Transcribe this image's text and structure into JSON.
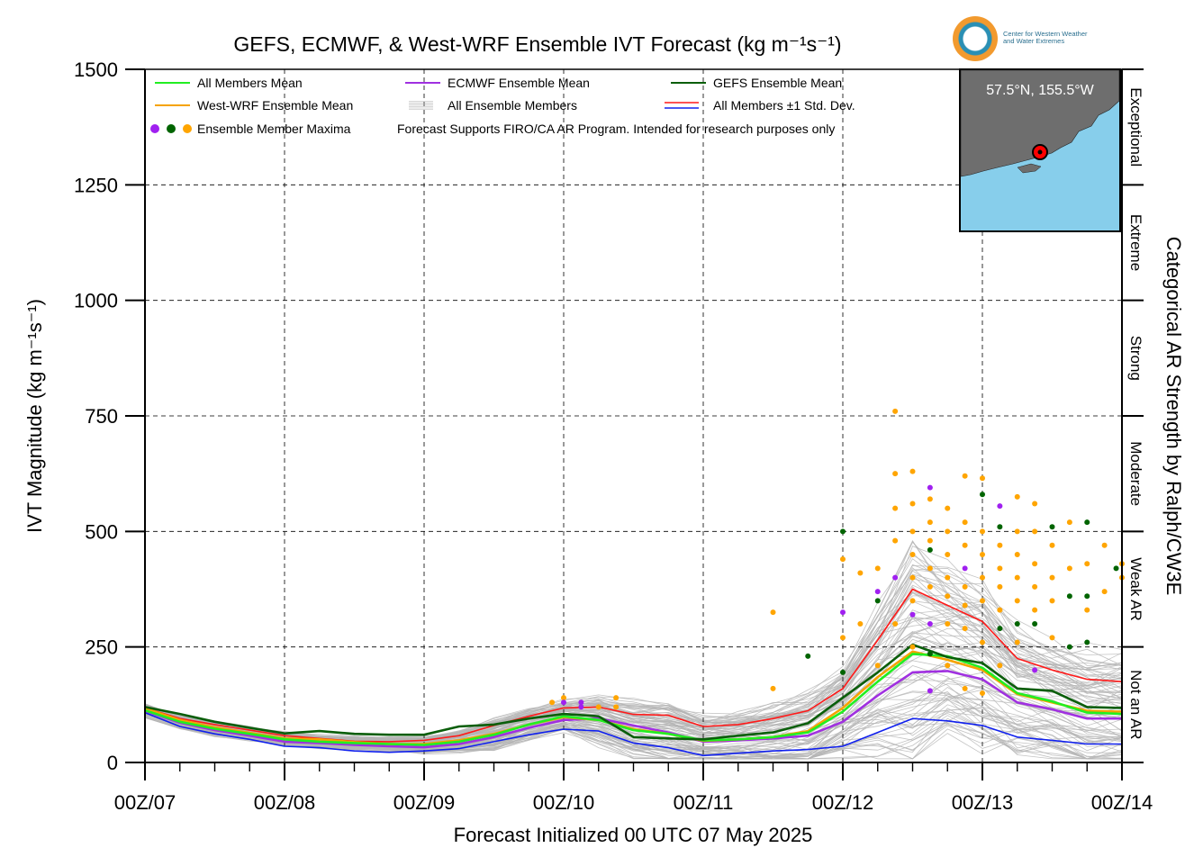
{
  "title": "GEFS, ECMWF, & West-WRF Ensemble IVT Forecast (kg m⁻¹s⁻¹)",
  "logo": {
    "line1": "Center for Western Weather",
    "line2": "and Water Extremes"
  },
  "inset_label": "57.5°N, 155.5°W",
  "footer_note": "Forecast Supports FIRO/CA AR Program. Intended for research purposes only",
  "colors": {
    "all_members_mean": "#22ee22",
    "west_wrf_mean": "#f5a300",
    "ecmwf_mean": "#a030e0",
    "all_ensemble_members": "#b4b4b4",
    "gefs_mean": "#0a5e0a",
    "std_plus": "#ff1a1a",
    "std_minus": "#1020ee",
    "maxima_ecmwf": "#a020f0",
    "maxima_gefs": "#006400",
    "maxima_westwrf": "#ffa500",
    "ocean": "#87ceeb",
    "land": "#6e6e6e"
  },
  "chart_data": {
    "type": "line",
    "title": "GEFS, ECMWF, & West-WRF Ensemble IVT Forecast (kg m⁻¹s⁻¹)",
    "xlabel": "Forecast Initialized 00 UTC 07 May 2025",
    "ylabel": "IVT Magnitude (kg m⁻¹s⁻¹)",
    "right_label": "Categorical AR Strength by Ralph/CW3E",
    "xlim": [
      0,
      168
    ],
    "ylim": [
      0,
      1500
    ],
    "x_unit": "forecast hour",
    "x_ticks": [
      0,
      24,
      48,
      72,
      96,
      120,
      144,
      168
    ],
    "x_tick_labels": [
      "00Z/07",
      "00Z/08",
      "00Z/09",
      "00Z/10",
      "00Z/11",
      "00Z/12",
      "00Z/13",
      "00Z/14"
    ],
    "y_ticks": [
      0,
      250,
      500,
      750,
      1000,
      1250,
      1500
    ],
    "y_tick_labels": [
      "0",
      "250",
      "500",
      "750",
      "1000",
      "1250",
      "1500"
    ],
    "categories": [
      {
        "label": "Not an AR",
        "lo": 0,
        "hi": 250
      },
      {
        "label": "Weak AR",
        "lo": 250,
        "hi": 500
      },
      {
        "label": "Moderate",
        "lo": 500,
        "hi": 750
      },
      {
        "label": "Strong",
        "lo": 750,
        "hi": 1000
      },
      {
        "label": "Extreme",
        "lo": 1000,
        "hi": 1250
      },
      {
        "label": "Exceptional",
        "lo": 1250,
        "hi": 1500
      }
    ],
    "grid": true,
    "legend": [
      {
        "label": "All Members Mean",
        "key": "all_members_mean",
        "kind": "line"
      },
      {
        "label": "ECMWF Ensemble Mean",
        "key": "ecmwf_mean",
        "kind": "line"
      },
      {
        "label": "GEFS Ensemble Mean",
        "key": "gefs_mean",
        "kind": "line"
      },
      {
        "label": "West-WRF Ensemble Mean",
        "key": "west_wrf_mean",
        "kind": "line"
      },
      {
        "label": "All Ensemble Members",
        "key": "all_ensemble_members",
        "kind": "multi"
      },
      {
        "label": "All Members ±1 Std. Dev.",
        "key": "std",
        "kind": "pair"
      },
      {
        "label": "Ensemble Member Maxima",
        "key": "maxima",
        "kind": "dots"
      }
    ],
    "legend_placement": "top-left",
    "series": [
      {
        "name": "All Members Mean",
        "key": "all_members_mean",
        "x": [
          0,
          6,
          12,
          18,
          24,
          30,
          36,
          42,
          48,
          54,
          60,
          66,
          72,
          78,
          84,
          90,
          96,
          102,
          108,
          114,
          120,
          126,
          132,
          138,
          144,
          150,
          156,
          162,
          168
        ],
        "y": [
          113,
          88,
          73,
          62,
          50,
          45,
          42,
          40,
          38,
          45,
          60,
          82,
          100,
          92,
          70,
          62,
          48,
          50,
          55,
          65,
          110,
          175,
          235,
          230,
          205,
          150,
          132,
          108,
          105
        ]
      },
      {
        "name": "West-WRF Ensemble Mean",
        "key": "west_wrf_mean",
        "x": [
          0,
          6,
          12,
          18,
          24,
          30,
          36,
          42,
          48,
          54,
          60,
          66,
          72,
          78,
          84,
          90,
          96,
          102,
          108,
          114,
          120,
          126,
          132,
          138,
          144,
          150,
          156,
          162,
          168
        ],
        "y": [
          117,
          92,
          76,
          64,
          52,
          50,
          44,
          40,
          40,
          48,
          62,
          82,
          98,
          92,
          72,
          62,
          47,
          50,
          55,
          68,
          118,
          185,
          240,
          222,
          200,
          148,
          130,
          112,
          110
        ]
      },
      {
        "name": "ECMWF Ensemble Mean",
        "key": "ecmwf_mean",
        "x": [
          0,
          6,
          12,
          18,
          24,
          30,
          36,
          42,
          48,
          54,
          60,
          66,
          72,
          78,
          84,
          90,
          96,
          102,
          108,
          114,
          120,
          126,
          132,
          138,
          144,
          150,
          156,
          162,
          168
        ],
        "y": [
          112,
          86,
          70,
          58,
          45,
          42,
          38,
          35,
          33,
          40,
          55,
          75,
          92,
          95,
          80,
          65,
          45,
          48,
          52,
          58,
          88,
          145,
          195,
          198,
          180,
          130,
          115,
          95,
          95
        ]
      },
      {
        "name": "GEFS Ensemble Mean",
        "key": "gefs_mean",
        "x": [
          0,
          6,
          12,
          18,
          24,
          30,
          36,
          42,
          48,
          54,
          60,
          66,
          72,
          78,
          84,
          90,
          96,
          102,
          108,
          114,
          120,
          126,
          132,
          138,
          144,
          150,
          156,
          162,
          168
        ],
        "y": [
          120,
          105,
          88,
          75,
          63,
          68,
          62,
          60,
          60,
          78,
          82,
          95,
          105,
          100,
          55,
          52,
          50,
          58,
          65,
          85,
          140,
          195,
          255,
          228,
          215,
          160,
          155,
          120,
          118
        ]
      },
      {
        "name": "All Members +1 Std. Dev.",
        "key": "std_plus",
        "x": [
          0,
          6,
          12,
          18,
          24,
          30,
          36,
          42,
          48,
          54,
          60,
          66,
          72,
          78,
          84,
          90,
          96,
          102,
          108,
          114,
          120,
          126,
          132,
          138,
          144,
          150,
          156,
          162,
          168
        ],
        "y": [
          118,
          95,
          82,
          70,
          58,
          52,
          46,
          45,
          48,
          58,
          80,
          100,
          118,
          120,
          104,
          102,
          78,
          82,
          95,
          112,
          160,
          265,
          375,
          340,
          305,
          225,
          200,
          180,
          175
        ]
      },
      {
        "name": "All Members -1 Std. Dev.",
        "key": "std_minus",
        "x": [
          0,
          6,
          12,
          18,
          24,
          30,
          36,
          42,
          48,
          54,
          60,
          66,
          72,
          78,
          84,
          90,
          96,
          102,
          108,
          114,
          120,
          126,
          132,
          138,
          144,
          150,
          156,
          162,
          168
        ],
        "y": [
          108,
          78,
          62,
          50,
          35,
          32,
          25,
          22,
          25,
          30,
          45,
          60,
          72,
          68,
          42,
          32,
          15,
          20,
          25,
          28,
          35,
          65,
          95,
          90,
          80,
          55,
          48,
          40,
          40
        ]
      }
    ],
    "maxima_points": [
      {
        "x": 120,
        "y": 500,
        "c": "maxima_gefs"
      },
      {
        "x": 120,
        "y": 440,
        "c": "maxima_westwrf"
      },
      {
        "x": 120,
        "y": 325,
        "c": "maxima_ecmwf"
      },
      {
        "x": 120,
        "y": 270,
        "c": "maxima_westwrf"
      },
      {
        "x": 120,
        "y": 195,
        "c": "maxima_gefs"
      },
      {
        "x": 114,
        "y": 230,
        "c": "maxima_gefs"
      },
      {
        "x": 108,
        "y": 325,
        "c": "maxima_westwrf"
      },
      {
        "x": 108,
        "y": 160,
        "c": "maxima_westwrf"
      },
      {
        "x": 123,
        "y": 410,
        "c": "maxima_westwrf"
      },
      {
        "x": 123,
        "y": 300,
        "c": "maxima_westwrf"
      },
      {
        "x": 126,
        "y": 420,
        "c": "maxima_westwrf"
      },
      {
        "x": 126,
        "y": 370,
        "c": "maxima_ecmwf"
      },
      {
        "x": 126,
        "y": 350,
        "c": "maxima_gefs"
      },
      {
        "x": 126,
        "y": 210,
        "c": "maxima_westwrf"
      },
      {
        "x": 129,
        "y": 760,
        "c": "maxima_westwrf"
      },
      {
        "x": 129,
        "y": 625,
        "c": "maxima_westwrf"
      },
      {
        "x": 129,
        "y": 550,
        "c": "maxima_westwrf"
      },
      {
        "x": 129,
        "y": 480,
        "c": "maxima_westwrf"
      },
      {
        "x": 129,
        "y": 400,
        "c": "maxima_ecmwf"
      },
      {
        "x": 129,
        "y": 300,
        "c": "maxima_westwrf"
      },
      {
        "x": 132,
        "y": 630,
        "c": "maxima_westwrf"
      },
      {
        "x": 132,
        "y": 560,
        "c": "maxima_westwrf"
      },
      {
        "x": 132,
        "y": 500,
        "c": "maxima_westwrf"
      },
      {
        "x": 132,
        "y": 450,
        "c": "maxima_westwrf"
      },
      {
        "x": 132,
        "y": 400,
        "c": "maxima_westwrf"
      },
      {
        "x": 132,
        "y": 350,
        "c": "maxima_westwrf"
      },
      {
        "x": 132,
        "y": 320,
        "c": "maxima_ecmwf"
      },
      {
        "x": 132,
        "y": 250,
        "c": "maxima_westwrf"
      },
      {
        "x": 135,
        "y": 595,
        "c": "maxima_ecmwf"
      },
      {
        "x": 135,
        "y": 570,
        "c": "maxima_westwrf"
      },
      {
        "x": 135,
        "y": 520,
        "c": "maxima_westwrf"
      },
      {
        "x": 135,
        "y": 480,
        "c": "maxima_westwrf"
      },
      {
        "x": 135,
        "y": 460,
        "c": "maxima_gefs"
      },
      {
        "x": 135,
        "y": 420,
        "c": "maxima_westwrf"
      },
      {
        "x": 135,
        "y": 380,
        "c": "maxima_westwrf"
      },
      {
        "x": 135,
        "y": 300,
        "c": "maxima_ecmwf"
      },
      {
        "x": 135,
        "y": 235,
        "c": "maxima_gefs"
      },
      {
        "x": 135,
        "y": 155,
        "c": "maxima_ecmwf"
      },
      {
        "x": 138,
        "y": 550,
        "c": "maxima_westwrf"
      },
      {
        "x": 138,
        "y": 500,
        "c": "maxima_westwrf"
      },
      {
        "x": 138,
        "y": 450,
        "c": "maxima_westwrf"
      },
      {
        "x": 138,
        "y": 400,
        "c": "maxima_westwrf"
      },
      {
        "x": 138,
        "y": 360,
        "c": "maxima_westwrf"
      },
      {
        "x": 138,
        "y": 300,
        "c": "maxima_westwrf"
      },
      {
        "x": 138,
        "y": 210,
        "c": "maxima_westwrf"
      },
      {
        "x": 141,
        "y": 620,
        "c": "maxima_westwrf"
      },
      {
        "x": 141,
        "y": 520,
        "c": "maxima_westwrf"
      },
      {
        "x": 141,
        "y": 470,
        "c": "maxima_westwrf"
      },
      {
        "x": 141,
        "y": 420,
        "c": "maxima_ecmwf"
      },
      {
        "x": 141,
        "y": 380,
        "c": "maxima_westwrf"
      },
      {
        "x": 141,
        "y": 340,
        "c": "maxima_westwrf"
      },
      {
        "x": 141,
        "y": 290,
        "c": "maxima_westwrf"
      },
      {
        "x": 141,
        "y": 160,
        "c": "maxima_westwrf"
      },
      {
        "x": 144,
        "y": 615,
        "c": "maxima_westwrf"
      },
      {
        "x": 144,
        "y": 580,
        "c": "maxima_gefs"
      },
      {
        "x": 144,
        "y": 500,
        "c": "maxima_westwrf"
      },
      {
        "x": 144,
        "y": 450,
        "c": "maxima_westwrf"
      },
      {
        "x": 144,
        "y": 400,
        "c": "maxima_westwrf"
      },
      {
        "x": 144,
        "y": 350,
        "c": "maxima_westwrf"
      },
      {
        "x": 144,
        "y": 260,
        "c": "maxima_westwrf"
      },
      {
        "x": 144,
        "y": 150,
        "c": "maxima_westwrf"
      },
      {
        "x": 147,
        "y": 555,
        "c": "maxima_ecmwf"
      },
      {
        "x": 147,
        "y": 510,
        "c": "maxima_gefs"
      },
      {
        "x": 147,
        "y": 470,
        "c": "maxima_westwrf"
      },
      {
        "x": 147,
        "y": 420,
        "c": "maxima_westwrf"
      },
      {
        "x": 147,
        "y": 380,
        "c": "maxima_westwrf"
      },
      {
        "x": 147,
        "y": 330,
        "c": "maxima_westwrf"
      },
      {
        "x": 147,
        "y": 290,
        "c": "maxima_gefs"
      },
      {
        "x": 147,
        "y": 210,
        "c": "maxima_westwrf"
      },
      {
        "x": 150,
        "y": 575,
        "c": "maxima_westwrf"
      },
      {
        "x": 150,
        "y": 500,
        "c": "maxima_westwrf"
      },
      {
        "x": 150,
        "y": 450,
        "c": "maxima_westwrf"
      },
      {
        "x": 150,
        "y": 400,
        "c": "maxima_westwrf"
      },
      {
        "x": 150,
        "y": 350,
        "c": "maxima_westwrf"
      },
      {
        "x": 150,
        "y": 300,
        "c": "maxima_gefs"
      },
      {
        "x": 150,
        "y": 260,
        "c": "maxima_westwrf"
      },
      {
        "x": 153,
        "y": 560,
        "c": "maxima_westwrf"
      },
      {
        "x": 153,
        "y": 500,
        "c": "maxima_westwrf"
      },
      {
        "x": 153,
        "y": 430,
        "c": "maxima_westwrf"
      },
      {
        "x": 153,
        "y": 380,
        "c": "maxima_westwrf"
      },
      {
        "x": 153,
        "y": 330,
        "c": "maxima_westwrf"
      },
      {
        "x": 153,
        "y": 300,
        "c": "maxima_gefs"
      },
      {
        "x": 153,
        "y": 200,
        "c": "maxima_ecmwf"
      },
      {
        "x": 156,
        "y": 510,
        "c": "maxima_gefs"
      },
      {
        "x": 156,
        "y": 470,
        "c": "maxima_westwrf"
      },
      {
        "x": 156,
        "y": 400,
        "c": "maxima_westwrf"
      },
      {
        "x": 156,
        "y": 350,
        "c": "maxima_westwrf"
      },
      {
        "x": 156,
        "y": 270,
        "c": "maxima_westwrf"
      },
      {
        "x": 159,
        "y": 520,
        "c": "maxima_westwrf"
      },
      {
        "x": 159,
        "y": 420,
        "c": "maxima_westwrf"
      },
      {
        "x": 159,
        "y": 360,
        "c": "maxima_gefs"
      },
      {
        "x": 159,
        "y": 250,
        "c": "maxima_gefs"
      },
      {
        "x": 162,
        "y": 520,
        "c": "maxima_gefs"
      },
      {
        "x": 162,
        "y": 430,
        "c": "maxima_westwrf"
      },
      {
        "x": 162,
        "y": 360,
        "c": "maxima_gefs"
      },
      {
        "x": 162,
        "y": 330,
        "c": "maxima_westwrf"
      },
      {
        "x": 162,
        "y": 260,
        "c": "maxima_gefs"
      },
      {
        "x": 165,
        "y": 470,
        "c": "maxima_westwrf"
      },
      {
        "x": 165,
        "y": 370,
        "c": "maxima_westwrf"
      },
      {
        "x": 167,
        "y": 420,
        "c": "maxima_gefs"
      },
      {
        "x": 168,
        "y": 430,
        "c": "maxima_westwrf"
      },
      {
        "x": 168,
        "y": 400,
        "c": "maxima_westwrf"
      },
      {
        "x": 70,
        "y": 130,
        "c": "maxima_westwrf"
      },
      {
        "x": 72,
        "y": 140,
        "c": "maxima_westwrf"
      },
      {
        "x": 72,
        "y": 130,
        "c": "maxima_ecmwf"
      },
      {
        "x": 75,
        "y": 130,
        "c": "maxima_ecmwf"
      },
      {
        "x": 75,
        "y": 120,
        "c": "maxima_ecmwf"
      },
      {
        "x": 78,
        "y": 120,
        "c": "maxima_westwrf"
      },
      {
        "x": 81,
        "y": 140,
        "c": "maxima_westwrf"
      },
      {
        "x": 81,
        "y": 120,
        "c": "maxima_westwrf"
      }
    ]
  }
}
